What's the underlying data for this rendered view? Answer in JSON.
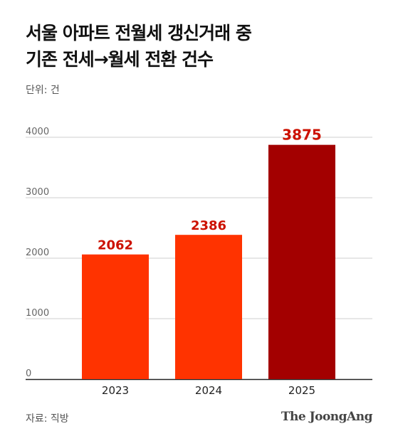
{
  "header": {
    "title_line1": "서울 아파트 전월세 갱신거래 중",
    "title_line2": "기존 전세→월세 전환 건수",
    "unit": "단위: 건"
  },
  "footer": {
    "source": "자료: 직방",
    "brand": "The JoongAng"
  },
  "colors": {
    "bar_regular": "#ff3300",
    "bar_highlight": "#a30000",
    "label_regular": "#cc1100",
    "label_highlight": "#cc1100",
    "grid": "#cfcfcf",
    "axis": "#222222"
  },
  "chart_data": {
    "type": "bar",
    "categories": [
      "2023",
      "2024",
      "2025"
    ],
    "values": [
      2062,
      2386,
      3875
    ],
    "highlight_index": 2,
    "ylim": [
      0,
      4000
    ],
    "yticks": [
      0,
      1000,
      2000,
      3000,
      4000
    ],
    "grid": true,
    "xlabel": "",
    "ylabel": ""
  }
}
